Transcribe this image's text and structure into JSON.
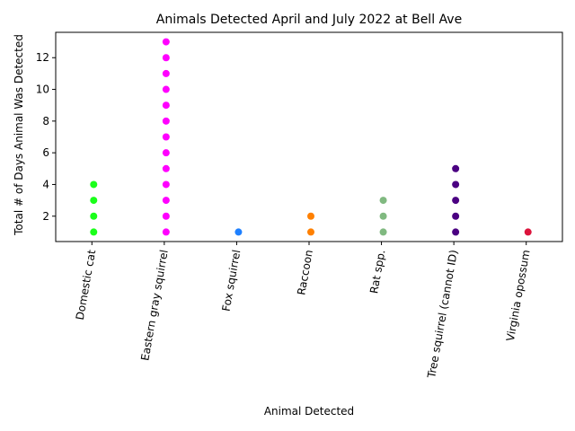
{
  "chart_data": {
    "type": "strip",
    "title": "Animals Detected April and July 2022 at Bell Ave",
    "x_label": "Animal Detected",
    "y_label": "Total # of Days Animal Was Detected",
    "categories": [
      "Domestic cat",
      "Eastern gray squirrel",
      "Fox squirrel",
      "Raccoon",
      "Rat spp.",
      "Tree squirrel (cannot ID)",
      "Virginia opossum"
    ],
    "colors": [
      "#1aff1a",
      "#ff00ff",
      "#1e80ff",
      "#ff8000",
      "#80b980",
      "#4b0082",
      "#dc143c"
    ],
    "values": [
      [
        1,
        2,
        3,
        4
      ],
      [
        1,
        2,
        3,
        4,
        5,
        6,
        7,
        8,
        9,
        10,
        11,
        12,
        13
      ],
      [
        1
      ],
      [
        1,
        2
      ],
      [
        1,
        2,
        3
      ],
      [
        1,
        2,
        3,
        4,
        5
      ],
      [
        1
      ]
    ],
    "ylim": [
      0.4,
      13.6
    ],
    "yticks": [
      2,
      4,
      6,
      8,
      10,
      12
    ]
  }
}
